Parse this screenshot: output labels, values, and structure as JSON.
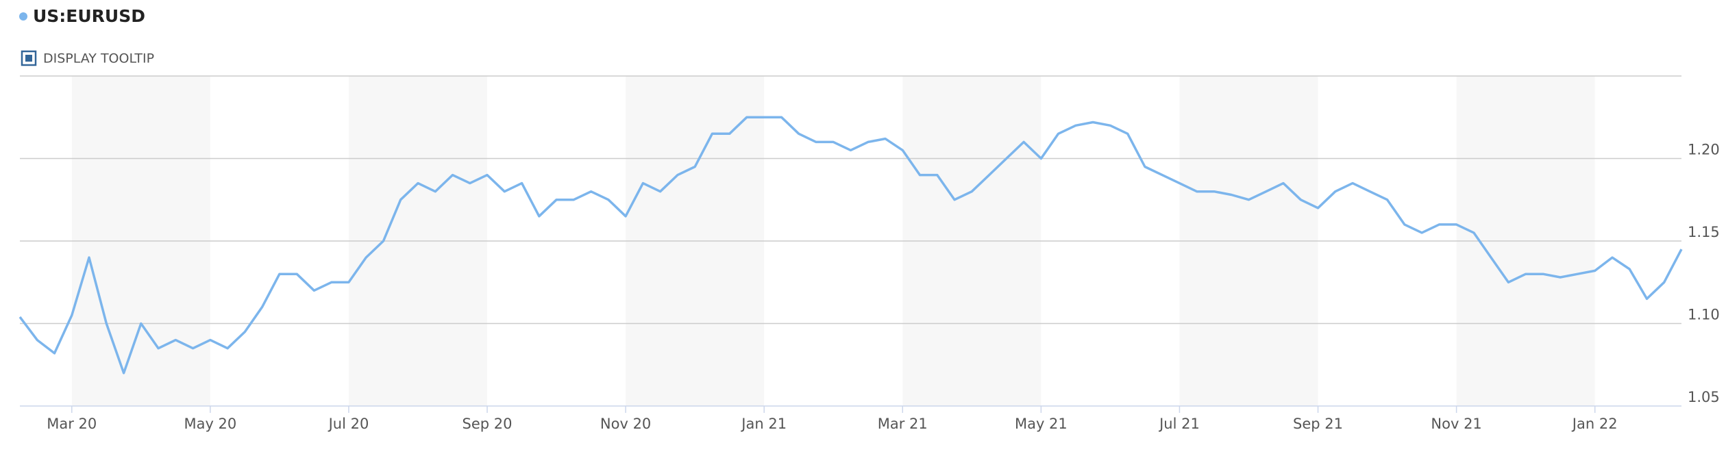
{
  "controls": {
    "tooltip": "DISPLAY TOOLTIP"
  },
  "chart_data": {
    "type": "line",
    "series": [
      {
        "name": "US:EURUSD",
        "color": "#7cb5ec",
        "values": [
          1.104,
          1.09,
          1.082,
          1.105,
          1.14,
          1.1,
          1.07,
          1.1,
          1.085,
          1.09,
          1.085,
          1.09,
          1.085,
          1.095,
          1.11,
          1.13,
          1.13,
          1.12,
          1.125,
          1.125,
          1.14,
          1.15,
          1.175,
          1.185,
          1.18,
          1.19,
          1.185,
          1.19,
          1.18,
          1.185,
          1.165,
          1.175,
          1.175,
          1.18,
          1.175,
          1.165,
          1.185,
          1.18,
          1.19,
          1.195,
          1.215,
          1.215,
          1.225,
          1.225,
          1.225,
          1.215,
          1.21,
          1.21,
          1.205,
          1.21,
          1.212,
          1.205,
          1.19,
          1.19,
          1.175,
          1.18,
          1.19,
          1.2,
          1.21,
          1.2,
          1.215,
          1.22,
          1.222,
          1.22,
          1.215,
          1.195,
          1.19,
          1.185,
          1.18,
          1.18,
          1.178,
          1.175,
          1.18,
          1.185,
          1.175,
          1.17,
          1.18,
          1.185,
          1.18,
          1.175,
          1.16,
          1.155,
          1.16,
          1.16,
          1.155,
          1.14,
          1.125,
          1.13,
          1.13,
          1.128,
          1.13,
          1.132,
          1.14,
          1.133,
          1.115,
          1.125,
          1.145
        ]
      }
    ],
    "categories": [
      null,
      null,
      null,
      "Mar 20",
      null,
      null,
      null,
      null,
      null,
      null,
      null,
      "May 20",
      null,
      null,
      null,
      null,
      null,
      null,
      null,
      "Jul 20",
      null,
      null,
      null,
      null,
      null,
      null,
      null,
      "Sep 20",
      null,
      null,
      null,
      null,
      null,
      null,
      null,
      "Nov 20",
      null,
      null,
      null,
      null,
      null,
      null,
      null,
      "Jan 21",
      null,
      null,
      null,
      null,
      null,
      null,
      null,
      "Mar 21",
      null,
      null,
      null,
      null,
      null,
      null,
      null,
      "May 21",
      null,
      null,
      null,
      null,
      null,
      null,
      null,
      "Jul 21",
      null,
      null,
      null,
      null,
      null,
      null,
      null,
      "Sep 21",
      null,
      null,
      null,
      null,
      null,
      null,
      null,
      "Nov 21",
      null,
      null,
      null,
      null,
      null,
      null,
      null,
      "Jan 22",
      null,
      null,
      null,
      null,
      null
    ],
    "ylim": [
      1.05,
      1.25
    ],
    "yticks": [
      1.05,
      {
        "value": 1.1,
        "label": "1.10"
      },
      1.15,
      {
        "value": 1.2,
        "label": "1.20"
      }
    ],
    "grid": true
  }
}
